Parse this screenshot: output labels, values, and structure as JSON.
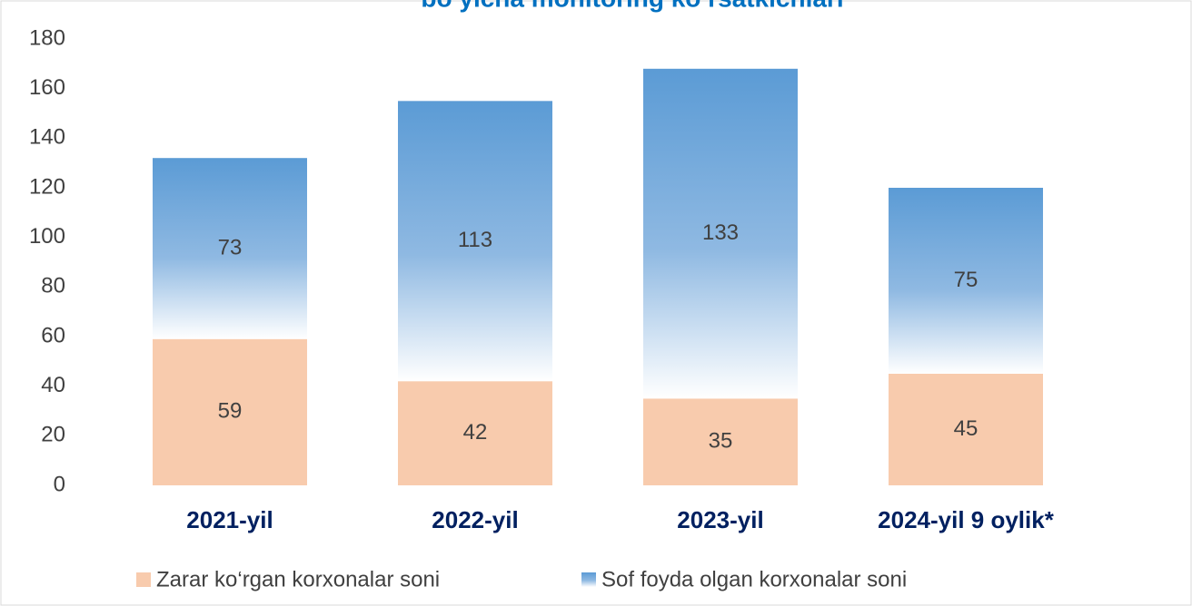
{
  "chart_data": {
    "type": "stacked_bar",
    "title": "bo‘yicha monitoring ko‘rsatkichlari",
    "categories": [
      "2021-yil",
      "2022-yil",
      "2023-yil",
      "2024-yil 9 oylik*"
    ],
    "series": [
      {
        "name": "Zarar ko‘rgan korxonalar soni",
        "color": "#f8cbad",
        "values": [
          59,
          42,
          35,
          45
        ]
      },
      {
        "name": "Sof foyda olgan korxonalar soni",
        "color": "#5b9bd5",
        "values": [
          73,
          113,
          133,
          75
        ]
      }
    ],
    "ylim": [
      0,
      180
    ],
    "yticks": [
      0,
      20,
      40,
      60,
      80,
      100,
      120,
      140,
      160,
      180
    ],
    "legend": "bottom"
  }
}
